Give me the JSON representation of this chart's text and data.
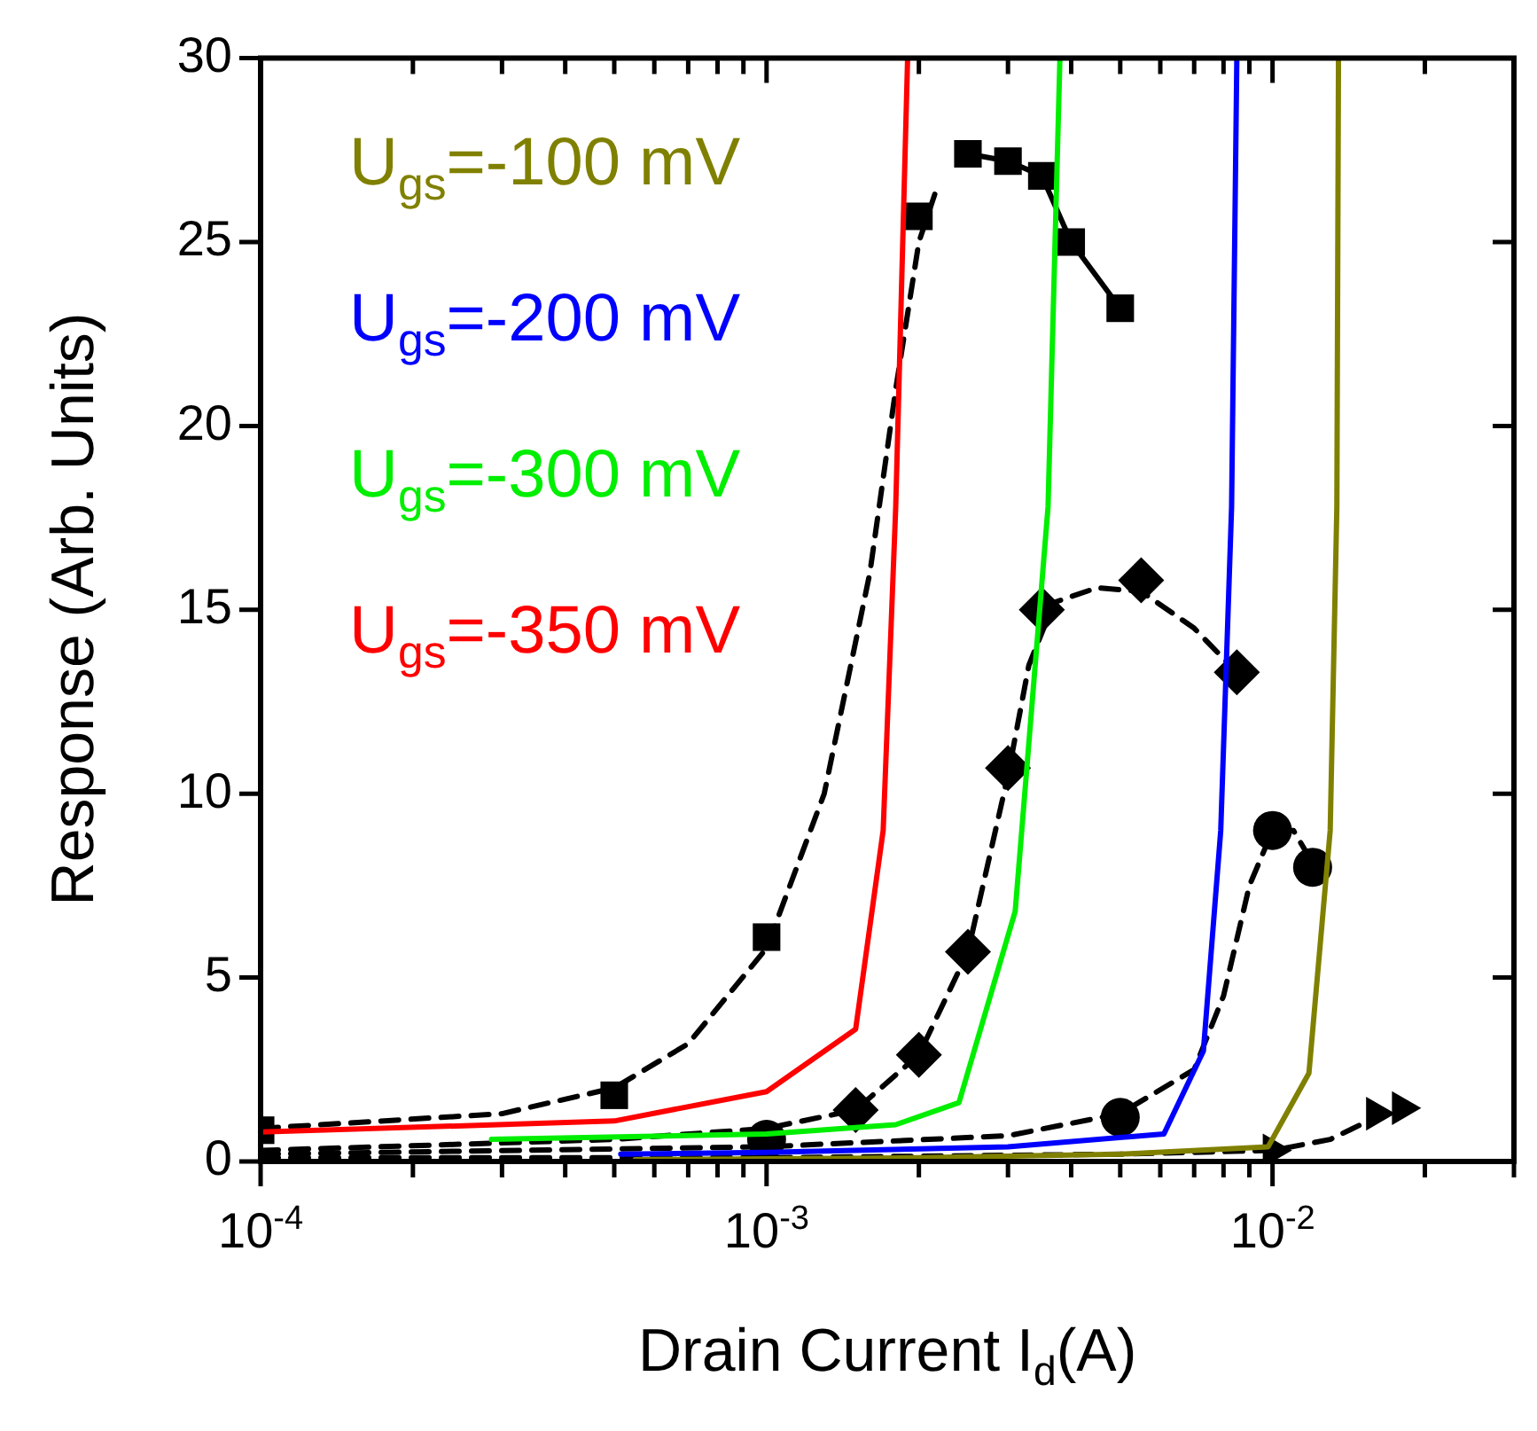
{
  "chart_data": {
    "type": "line",
    "xlabel": "Drain Current I$_{d}$(A)",
    "ylabel": "Response (Arb. Units)",
    "log": "x",
    "grid": false,
    "legend": "top left",
    "xlim": [
      0.0001,
      0.03
    ],
    "ylim": [
      0,
      30
    ],
    "yticks": [
      0,
      5,
      10,
      15,
      20,
      25,
      30
    ],
    "xticks": [
      {
        "value": 0.0001,
        "label": "10$^{-4}$"
      },
      {
        "value": 0.0002,
        "label": null
      },
      {
        "value": 0.0003,
        "label": null
      },
      {
        "value": 0.0004,
        "label": null
      },
      {
        "value": 0.0005,
        "label": null
      },
      {
        "value": 0.0006,
        "label": null
      },
      {
        "value": 0.0007,
        "label": null
      },
      {
        "value": 0.0008,
        "label": null
      },
      {
        "value": 0.0009,
        "label": null
      },
      {
        "value": 0.001,
        "label": "10$^{-3}$"
      },
      {
        "value": 0.002,
        "label": null
      },
      {
        "value": 0.003,
        "label": null
      },
      {
        "value": 0.004,
        "label": null
      },
      {
        "value": 0.005,
        "label": null
      },
      {
        "value": 0.006,
        "label": null
      },
      {
        "value": 0.007,
        "label": null
      },
      {
        "value": 0.008,
        "label": null
      },
      {
        "value": 0.009,
        "label": null
      },
      {
        "value": 0.01,
        "label": "10$^{-2}$"
      },
      {
        "value": 0.02,
        "label": null
      },
      {
        "value": 0.03,
        "label": null
      }
    ],
    "series": [
      {
        "name": "U$_{gs}$=-100 mV",
        "color": "#808000",
        "line_style": "solid",
        "marker": "none",
        "x": [
          0.00055,
          0.002,
          0.005,
          0.0098,
          0.0118,
          0.013,
          0.0134,
          0.0135
        ],
        "values": [
          0.05,
          0.1,
          0.2,
          0.4,
          2.4,
          9,
          17.8,
          30
        ]
      },
      {
        "name": "U$_{gs}$=-200 mV",
        "color": "#0000ff",
        "line_style": "solid",
        "marker": "none",
        "x": [
          0.000515,
          0.001,
          0.003,
          0.0061,
          0.0073,
          0.0079,
          0.0083,
          0.0085
        ],
        "values": [
          0.2,
          0.25,
          0.4,
          0.75,
          3,
          9,
          17.8,
          30
        ]
      },
      {
        "name": "U$_{gs}$=-300 mV",
        "color": "#00ee00",
        "line_style": "solid",
        "marker": "none",
        "x": [
          0.000286,
          0.001,
          0.0018,
          0.0024,
          0.0031,
          0.0036,
          0.0038
        ],
        "values": [
          0.6,
          0.75,
          1.0,
          1.6,
          6.8,
          17.8,
          30
        ]
      },
      {
        "name": "U$_{gs}$=-350 mV",
        "color": "#ff0000",
        "line_style": "solid",
        "marker": "none",
        "x": [
          0.0001,
          0.0005,
          0.001,
          0.0015,
          0.0017,
          0.0018,
          0.0019
        ],
        "values": [
          0.8,
          1.1,
          1.9,
          3.6,
          9,
          17.8,
          30
        ]
      },
      {
        "type": "scatter",
        "color": "#000000",
        "marker": "square",
        "x": [
          0.0001,
          0.0005,
          0.001,
          0.002,
          0.0025,
          0.003,
          0.0035,
          0.004,
          0.005
        ],
        "values": [
          0.85,
          1.8,
          6.1,
          25.7,
          27.4,
          27.2,
          26.8,
          25.0,
          23.2
        ]
      },
      {
        "color": "#000000",
        "line_style": "dashed",
        "marker": "none",
        "x": [
          0.0001,
          0.0003,
          0.0005,
          0.0007,
          0.001,
          0.0013,
          0.0016,
          0.0018,
          0.002,
          0.00215
        ],
        "values": [
          0.9,
          1.3,
          2.0,
          3.2,
          5.8,
          10,
          16,
          21,
          25,
          26.3
        ]
      },
      {
        "color": "#000000",
        "line_style": "solid",
        "marker": "none",
        "x": [
          0.0025,
          0.003,
          0.0035,
          0.004,
          0.005
        ],
        "values": [
          27.4,
          27.2,
          26.8,
          25.0,
          23.2
        ]
      },
      {
        "type": "scatter",
        "color": "#000000",
        "marker": "diamond",
        "x": [
          0.0015,
          0.002,
          0.0025,
          0.003,
          0.0035,
          0.0055,
          0.0085
        ],
        "values": [
          1.4,
          2.9,
          5.7,
          10.7,
          15.0,
          15.8,
          13.3
        ]
      },
      {
        "color": "#000000",
        "line_style": "dashed",
        "marker": "none",
        "x": [
          0.0001,
          0.0005,
          0.001,
          0.0015,
          0.002,
          0.0025,
          0.003,
          0.0033,
          0.0037,
          0.0045,
          0.0055,
          0.007,
          0.0085
        ],
        "values": [
          0.3,
          0.6,
          0.9,
          1.4,
          2.9,
          5.7,
          10.5,
          13.5,
          15.2,
          15.6,
          15.5,
          14.5,
          13.3
        ]
      },
      {
        "type": "scatter",
        "color": "#000000",
        "marker": "circle",
        "x": [
          0.001,
          0.005,
          0.01,
          0.012
        ],
        "values": [
          0.6,
          1.2,
          9.0,
          8.0
        ]
      },
      {
        "color": "#000000",
        "line_style": "dashed",
        "marker": "none",
        "x": [
          0.0001,
          0.001,
          0.003,
          0.005,
          0.007,
          0.008,
          0.009,
          0.01,
          0.011,
          0.0125
        ],
        "values": [
          0.2,
          0.4,
          0.7,
          1.3,
          2.5,
          4.5,
          7.5,
          9.0,
          9.0,
          7.7
        ]
      },
      {
        "type": "scatter",
        "color": "#000000",
        "marker": "triangle",
        "x": [
          0.01,
          0.016,
          0.018
        ],
        "values": [
          0.3,
          1.3,
          1.45
        ]
      },
      {
        "color": "#000000",
        "line_style": "dashed",
        "marker": "none",
        "x": [
          0.0001,
          0.001,
          0.005,
          0.01,
          0.013,
          0.016,
          0.018
        ],
        "values": [
          0.1,
          0.1,
          0.2,
          0.3,
          0.6,
          1.2,
          1.45
        ]
      }
    ]
  }
}
